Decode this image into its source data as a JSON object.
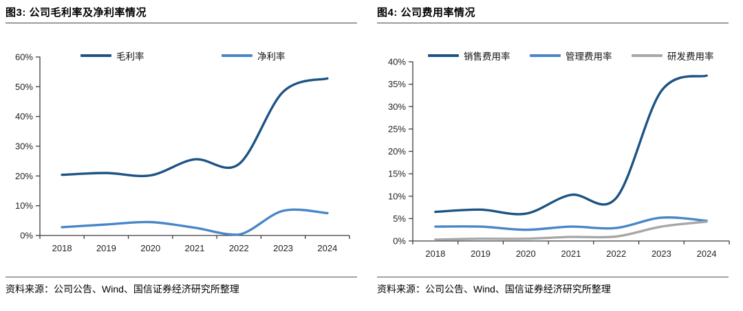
{
  "chart_data": [
    {
      "type": "line",
      "title": "图3: 公司毛利率及净利率情况",
      "source": "资料来源：公司公告、Wind、国信证券经济研究所整理",
      "categories": [
        "2018",
        "2019",
        "2020",
        "2021",
        "2022",
        "2023",
        "2024"
      ],
      "series": [
        {
          "name": "毛利率",
          "color": "#1C5384",
          "values": [
            20.4,
            21.0,
            20.2,
            25.6,
            24.0,
            48.3,
            52.8
          ]
        },
        {
          "name": "净利率",
          "color": "#4886C8",
          "values": [
            2.8,
            3.7,
            4.5,
            2.6,
            0.3,
            8.3,
            7.5
          ]
        }
      ],
      "xlabel": "",
      "ylabel": "",
      "ylim": [
        0,
        60
      ],
      "ytick_step": 10,
      "ytick_suffix": "%",
      "grid": false,
      "legend_position": "top",
      "line_style": "smooth"
    },
    {
      "type": "line",
      "title": "图4: 公司费用率情况",
      "source": "资料来源：公司公告、Wind、国信证券经济研究所整理",
      "categories": [
        "2018",
        "2019",
        "2020",
        "2021",
        "2022",
        "2023",
        "2024"
      ],
      "series": [
        {
          "name": "销售费用率",
          "color": "#1C5384",
          "values": [
            6.5,
            7.0,
            6.1,
            10.3,
            9.6,
            33.5,
            36.9
          ]
        },
        {
          "name": "管理费用率",
          "color": "#4886C8",
          "values": [
            3.2,
            3.2,
            2.5,
            3.2,
            2.9,
            5.2,
            4.5
          ]
        },
        {
          "name": "研发费用率",
          "color": "#A7A7A7",
          "values": [
            0.3,
            0.5,
            0.5,
            0.9,
            1.0,
            3.2,
            4.3
          ]
        }
      ],
      "xlabel": "",
      "ylabel": "",
      "ylim": [
        0,
        40
      ],
      "ytick_step": 5,
      "ytick_suffix": "%",
      "grid": false,
      "legend_position": "top",
      "line_style": "smooth"
    }
  ],
  "axis_color": "#3c3c3c"
}
